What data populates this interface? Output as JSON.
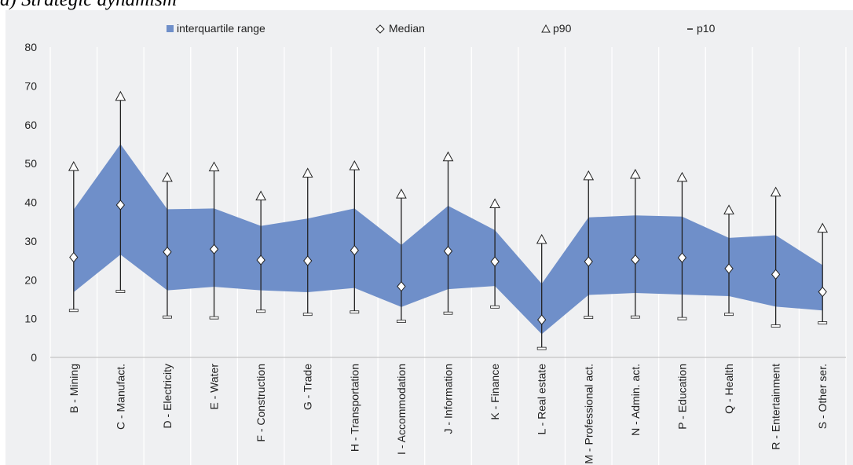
{
  "heading": "a) Strategic dynamism",
  "legend": {
    "iqr": "interquartile range",
    "median": "Median",
    "p90": "p90",
    "p10": "p10"
  },
  "colors": {
    "band": "#6f8fc9",
    "background": "#eff0f2",
    "grid": "#ffffff",
    "whisker": "#222222"
  },
  "chart_data": {
    "type": "area",
    "categories": [
      "B - Mining",
      "C - Manufact.",
      "D - Electricity",
      "E - Water",
      "F - Construction",
      "G - Trade",
      "H - Transportation",
      "I - Accommodation",
      "J - Information",
      "K - Finance",
      "L - Real estate",
      "M - Professional act.",
      "N - Admin. act.",
      "P - Education",
      "Q - Health",
      "R - Entertainment",
      "S - Other ser."
    ],
    "series": [
      {
        "name": "interquartile range",
        "lower": [
          16.8,
          26.5,
          17.3,
          18.2,
          17.3,
          16.8,
          17.9,
          13.0,
          17.6,
          18.4,
          6.0,
          16.1,
          16.6,
          16.2,
          15.8,
          13.1,
          12.1
        ],
        "upper": [
          38.1,
          55.0,
          38.2,
          38.4,
          33.9,
          35.8,
          38.4,
          29.0,
          39.1,
          32.8,
          19.0,
          36.1,
          36.6,
          36.3,
          30.8,
          31.5,
          23.8
        ]
      },
      {
        "name": "Median",
        "values": [
          25.8,
          39.3,
          27.2,
          27.9,
          25.1,
          24.9,
          27.6,
          18.3,
          27.4,
          24.7,
          9.7,
          24.7,
          25.2,
          25.7,
          22.9,
          21.4,
          16.9
        ]
      },
      {
        "name": "p90",
        "values": [
          49.2,
          67.3,
          46.4,
          49.1,
          41.6,
          47.5,
          49.4,
          42.1,
          51.7,
          39.6,
          30.4,
          46.8,
          47.2,
          46.4,
          38.0,
          42.6,
          33.3
        ]
      },
      {
        "name": "p10",
        "values": [
          12.1,
          17.0,
          10.4,
          10.2,
          11.9,
          11.1,
          11.7,
          9.3,
          11.4,
          13.0,
          2.3,
          10.3,
          10.4,
          10.0,
          11.1,
          8.1,
          8.9
        ]
      }
    ],
    "ylim": [
      0,
      80
    ],
    "yticks": [
      "0",
      "10",
      "20",
      "30",
      "40",
      "50",
      "60",
      "70",
      "80"
    ],
    "grid": "vertical",
    "legend_position": "top"
  }
}
